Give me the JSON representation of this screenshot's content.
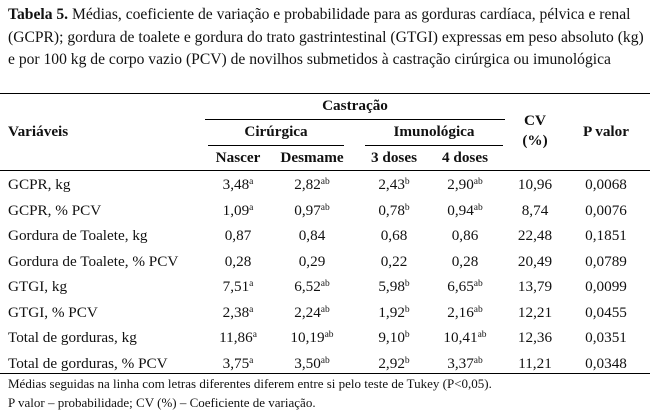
{
  "caption": {
    "label": "Tabela 5.",
    "text": " Médias, coeficiente de variação e probabilidade para as gorduras cardíaca, pélvica e renal (GCPR); gordura de toalete e gordura do trato gastrintestinal (GTGI) expressas em peso absoluto (kg) e por 100 kg de corpo vazio (PCV) de novilhos submetidos à castração cirúrgica ou imunológica"
  },
  "header": {
    "variaveis": "Variáveis",
    "castracao": "Castração",
    "cirurgica": "Cirúrgica",
    "imunologica": "Imunológica",
    "cv_line1": "CV",
    "cv_line2": "(%)",
    "pvalor": "P valor",
    "sub": [
      "Nascer",
      "Desmame",
      "3 doses",
      "4 doses"
    ]
  },
  "rows": [
    {
      "label": "GCPR, kg",
      "v": [
        [
          "3,48",
          "a"
        ],
        [
          "2,82",
          "ab"
        ],
        [
          "2,43",
          "b"
        ],
        [
          "2,90",
          "ab"
        ]
      ],
      "cv": "10,96",
      "p": "0,0068"
    },
    {
      "label": "GCPR, % PCV",
      "v": [
        [
          "1,09",
          "a"
        ],
        [
          "0,97",
          "ab"
        ],
        [
          "0,78",
          "b"
        ],
        [
          "0,94",
          "ab"
        ]
      ],
      "cv": "8,74",
      "p": "0,0076"
    },
    {
      "label": "Gordura de Toalete, kg",
      "v": [
        [
          "0,87",
          ""
        ],
        [
          "0,84",
          ""
        ],
        [
          "0,68",
          ""
        ],
        [
          "0,86",
          ""
        ]
      ],
      "cv": "22,48",
      "p": "0,1851"
    },
    {
      "label": "Gordura de Toalete, % PCV",
      "v": [
        [
          "0,28",
          ""
        ],
        [
          "0,29",
          ""
        ],
        [
          "0,22",
          ""
        ],
        [
          "0,28",
          ""
        ]
      ],
      "cv": "20,49",
      "p": "0,0789"
    },
    {
      "label": "GTGI, kg",
      "v": [
        [
          "7,51",
          "a"
        ],
        [
          "6,52",
          "ab"
        ],
        [
          "5,98",
          "b"
        ],
        [
          "6,65",
          "ab"
        ]
      ],
      "cv": "13,79",
      "p": "0,0099"
    },
    {
      "label": "GTGI, % PCV",
      "v": [
        [
          "2,38",
          "a"
        ],
        [
          "2,24",
          "ab"
        ],
        [
          "1,92",
          "b"
        ],
        [
          "2,16",
          "ab"
        ]
      ],
      "cv": "12,21",
      "p": "0,0455"
    },
    {
      "label": "Total de gorduras, kg",
      "v": [
        [
          "11,86",
          "a"
        ],
        [
          "10,19",
          "ab"
        ],
        [
          "9,10",
          "b"
        ],
        [
          "10,41",
          "ab"
        ]
      ],
      "cv": "12,36",
      "p": "0,0351"
    },
    {
      "label": "Total de gorduras, % PCV",
      "v": [
        [
          "3,75",
          "a"
        ],
        [
          "3,50",
          "ab"
        ],
        [
          "2,92",
          "b"
        ],
        [
          "3,37",
          "ab"
        ]
      ],
      "cv": "11,21",
      "p": "0,0348"
    }
  ],
  "footnotes": [
    "Médias seguidas na linha com letras diferentes diferem entre si pelo teste de Tukey (P<0,05).",
    "P valor – probabilidade; CV (%) – Coeficiente de variação."
  ]
}
